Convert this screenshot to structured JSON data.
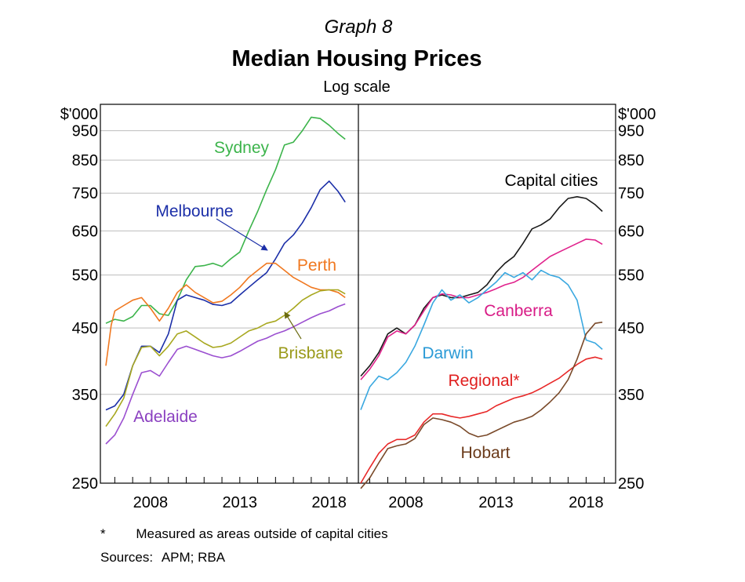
{
  "chart_data": {
    "type": "line",
    "graph_number": "Graph 8",
    "title": "Median Housing Prices",
    "subtitle": "Log scale",
    "y_unit": "$'000",
    "y_scale": "log",
    "ylim": [
      250,
      1050
    ],
    "y_ticks": [
      "250",
      "350",
      "450",
      "550",
      "650",
      "750",
      "850",
      "950"
    ],
    "xlim": [
      2005.5,
      2019.2
    ],
    "x_ticks": [
      "2008",
      "2013",
      "2018"
    ],
    "grid": true,
    "panels": [
      {
        "id": "left",
        "series": [
          {
            "name": "Sydney",
            "color": "#3cb44b",
            "label_color": "#3cb44b",
            "x": [
              2005.5,
              2006,
              2006.5,
              2007,
              2007.5,
              2008,
              2008.5,
              2009,
              2009.5,
              2010,
              2010.5,
              2011,
              2011.5,
              2012,
              2012.5,
              2013,
              2013.5,
              2014,
              2014.5,
              2015,
              2015.5,
              2016,
              2016.5,
              2017,
              2017.5,
              2018,
              2018.5,
              2018.9
            ],
            "y": [
              458,
              465,
              462,
              470,
              490,
              490,
              475,
              472,
              500,
              540,
              568,
              570,
              575,
              568,
              585,
              600,
              650,
              700,
              760,
              820,
              900,
              910,
              950,
              1000,
              995,
              970,
              940,
              920
            ]
          },
          {
            "name": "Melbourne",
            "color": "#1c2fa8",
            "label_color": "#1c2fa8",
            "x": [
              2005.5,
              2006,
              2006.5,
              2007,
              2007.5,
              2008,
              2008.5,
              2009,
              2009.5,
              2010,
              2010.5,
              2011,
              2011.5,
              2012,
              2012.5,
              2013,
              2013.5,
              2014,
              2014.5,
              2015,
              2015.5,
              2016,
              2016.5,
              2017,
              2017.5,
              2018,
              2018.5,
              2018.9
            ],
            "y": [
              330,
              335,
              350,
              390,
              420,
              420,
              410,
              440,
              500,
              510,
              505,
              500,
              492,
              490,
              495,
              510,
              525,
              540,
              555,
              585,
              620,
              640,
              670,
              710,
              760,
              785,
              755,
              725
            ]
          },
          {
            "name": "Perth",
            "color": "#f07820",
            "label_color": "#f07820",
            "x": [
              2005.5,
              2005.8,
              2006,
              2006.5,
              2007,
              2007.5,
              2008,
              2008.5,
              2009,
              2009.5,
              2010,
              2010.5,
              2011,
              2011.5,
              2012,
              2012.5,
              2013,
              2013.5,
              2014,
              2014.5,
              2015,
              2015.5,
              2016,
              2016.5,
              2017,
              2017.5,
              2018,
              2018.5,
              2018.9
            ],
            "y": [
              390,
              455,
              480,
              490,
              500,
              505,
              485,
              462,
              485,
              515,
              530,
              515,
              505,
              495,
              498,
              510,
              525,
              545,
              560,
              575,
              575,
              560,
              545,
              535,
              525,
              520,
              520,
              515,
              505
            ]
          },
          {
            "name": "Brisbane",
            "color": "#a8a820",
            "label_color": "#9a9a1a",
            "x": [
              2005.5,
              2006,
              2006.5,
              2007,
              2007.5,
              2008,
              2008.5,
              2009,
              2009.5,
              2010,
              2010.5,
              2011,
              2011.5,
              2012,
              2012.5,
              2013,
              2013.5,
              2014,
              2014.5,
              2015,
              2015.5,
              2016,
              2016.5,
              2017,
              2017.5,
              2018,
              2018.5,
              2018.9
            ],
            "y": [
              310,
              325,
              345,
              390,
              418,
              420,
              405,
              420,
              440,
              445,
              435,
              425,
              418,
              420,
              425,
              435,
              445,
              450,
              458,
              462,
              472,
              485,
              500,
              510,
              518,
              520,
              520,
              512
            ]
          },
          {
            "name": "Adelaide",
            "color": "#9b4fd0",
            "label_color": "#8a3fc0",
            "x": [
              2005.5,
              2006,
              2006.5,
              2007,
              2007.5,
              2008,
              2008.5,
              2009,
              2009.5,
              2010,
              2010.5,
              2011,
              2011.5,
              2012,
              2012.5,
              2013,
              2013.5,
              2014,
              2014.5,
              2015,
              2015.5,
              2016,
              2016.5,
              2017,
              2017.5,
              2018,
              2018.5,
              2018.9
            ],
            "y": [
              290,
              300,
              320,
              350,
              380,
              383,
              375,
              395,
              415,
              420,
              415,
              410,
              405,
              402,
              405,
              412,
              420,
              428,
              433,
              440,
              445,
              452,
              460,
              468,
              475,
              480,
              488,
              493
            ]
          }
        ]
      },
      {
        "id": "right",
        "series": [
          {
            "name": "Capital cities",
            "color": "#1a1a1a",
            "label_color": "#000000",
            "x": [
              2005.5,
              2006,
              2006.5,
              2007,
              2007.5,
              2008,
              2008.5,
              2009,
              2009.5,
              2010,
              2010.5,
              2011,
              2011.5,
              2012,
              2012.5,
              2013,
              2013.5,
              2014,
              2014.5,
              2015,
              2015.5,
              2016,
              2016.5,
              2017,
              2017.5,
              2018,
              2018.5,
              2018.9
            ],
            "y": [
              375,
              390,
              410,
              440,
              450,
              440,
              455,
              485,
              505,
              510,
              505,
              505,
              510,
              515,
              530,
              555,
              575,
              590,
              620,
              655,
              665,
              680,
              710,
              735,
              740,
              735,
              718,
              700
            ]
          },
          {
            "name": "Canberra",
            "color": "#e0228c",
            "label_color": "#d81b86",
            "x": [
              2005.5,
              2006,
              2006.5,
              2007,
              2007.5,
              2008,
              2008.5,
              2009,
              2009.5,
              2010,
              2010.5,
              2011,
              2011.5,
              2012,
              2012.5,
              2013,
              2013.5,
              2014,
              2014.5,
              2015,
              2015.5,
              2016,
              2016.5,
              2017,
              2017.5,
              2018,
              2018.5,
              2018.9
            ],
            "y": [
              370,
              385,
              405,
              435,
              445,
              440,
              455,
              480,
              505,
              512,
              510,
              505,
              505,
              510,
              515,
              522,
              530,
              535,
              545,
              560,
              575,
              590,
              600,
              610,
              620,
              630,
              628,
              618
            ]
          },
          {
            "name": "Darwin",
            "color": "#3aa8e0",
            "label_color": "#2a9ad6",
            "x": [
              2005.5,
              2006,
              2006.5,
              2007,
              2007.5,
              2008,
              2008.5,
              2009,
              2009.5,
              2010,
              2010.5,
              2011,
              2011.5,
              2012,
              2012.5,
              2013,
              2013.5,
              2014,
              2014.5,
              2015,
              2015.5,
              2016,
              2016.5,
              2017,
              2017.5,
              2018,
              2018.5,
              2018.9
            ],
            "y": [
              330,
              360,
              375,
              370,
              380,
              395,
              420,
              455,
              495,
              520,
              500,
              510,
              495,
              505,
              520,
              535,
              555,
              545,
              555,
              540,
              560,
              550,
              545,
              530,
              500,
              430,
              425,
              415
            ]
          },
          {
            "name": "Regional*",
            "color": "#e82828",
            "label_color": "#e02020",
            "x": [
              2005.5,
              2006,
              2006.5,
              2007,
              2007.5,
              2008,
              2008.5,
              2009,
              2009.5,
              2010,
              2010.5,
              2011,
              2011.5,
              2012,
              2012.5,
              2013,
              2013.5,
              2014,
              2014.5,
              2015,
              2015.5,
              2016,
              2016.5,
              2017,
              2017.5,
              2018,
              2018.5,
              2018.9
            ],
            "y": [
              250,
              265,
              280,
              290,
              295,
              295,
              300,
              315,
              325,
              325,
              322,
              320,
              322,
              325,
              328,
              335,
              340,
              345,
              348,
              352,
              358,
              365,
              372,
              382,
              392,
              400,
              403,
              400
            ]
          },
          {
            "name": "Hobart",
            "color": "#7a4a2a",
            "label_color": "#6a3a1a",
            "x": [
              2005.5,
              2006,
              2006.5,
              2007,
              2007.5,
              2008,
              2008.5,
              2009,
              2009.5,
              2010,
              2010.5,
              2011,
              2011.5,
              2012,
              2012.5,
              2013,
              2013.5,
              2014,
              2014.5,
              2015,
              2015.5,
              2016,
              2016.5,
              2017,
              2017.5,
              2018,
              2018.5,
              2018.9
            ],
            "y": [
              245,
              255,
              270,
              285,
              288,
              290,
              296,
              312,
              320,
              318,
              315,
              310,
              302,
              298,
              300,
              305,
              310,
              315,
              318,
              322,
              330,
              340,
              352,
              370,
              400,
              440,
              458,
              460
            ]
          }
        ]
      }
    ]
  },
  "footnote": {
    "marker": "*",
    "text": "Measured as areas outside of capital cities"
  },
  "sources": {
    "label": "Sources:",
    "text": "APM; RBA"
  }
}
